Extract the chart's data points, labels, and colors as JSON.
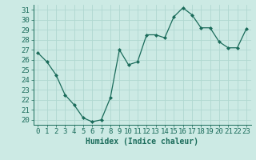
{
  "x": [
    0,
    1,
    2,
    3,
    4,
    5,
    6,
    7,
    8,
    9,
    10,
    11,
    12,
    13,
    14,
    15,
    16,
    17,
    18,
    19,
    20,
    21,
    22,
    23
  ],
  "y": [
    26.7,
    25.8,
    24.5,
    22.5,
    21.5,
    20.2,
    19.8,
    20.0,
    22.2,
    27.0,
    25.5,
    25.8,
    28.5,
    28.5,
    28.2,
    30.3,
    31.2,
    30.5,
    29.2,
    29.2,
    27.8,
    27.2,
    27.2,
    29.1
  ],
  "xlabel": "Humidex (Indice chaleur)",
  "ylim": [
    19.5,
    31.5
  ],
  "xlim": [
    -0.5,
    23.5
  ],
  "yticks": [
    20,
    21,
    22,
    23,
    24,
    25,
    26,
    27,
    28,
    29,
    30,
    31
  ],
  "xticks": [
    0,
    1,
    2,
    3,
    4,
    5,
    6,
    7,
    8,
    9,
    10,
    11,
    12,
    13,
    14,
    15,
    16,
    17,
    18,
    19,
    20,
    21,
    22,
    23
  ],
  "line_color": "#1a6b5a",
  "marker": "D",
  "marker_size": 2.0,
  "bg_color": "#cceae4",
  "grid_color": "#b0d8d0",
  "tick_label_color": "#1a6b5a",
  "xlabel_color": "#1a6b5a",
  "xlabel_fontsize": 7,
  "tick_fontsize": 6.5
}
